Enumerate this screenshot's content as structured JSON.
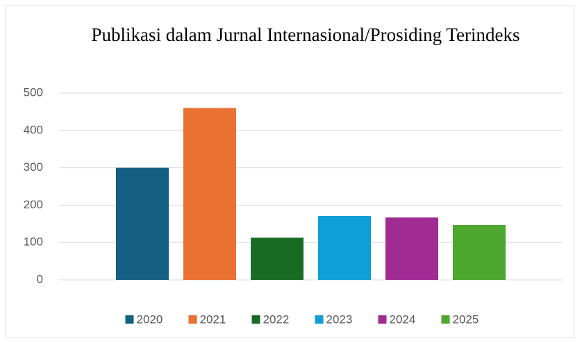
{
  "chart_data": {
    "type": "bar",
    "title": "Publikasi dalam Jurnal Internasional/Prosiding Terindeks",
    "categories": [
      null
    ],
    "series": [
      {
        "name": "2020",
        "color": "#156082",
        "values": [
          300
        ]
      },
      {
        "name": "2021",
        "color": "#e97132",
        "values": [
          460
        ]
      },
      {
        "name": "2022",
        "color": "#196b24",
        "values": [
          113
        ]
      },
      {
        "name": "2023",
        "color": "#0f9ed5",
        "values": [
          171
        ]
      },
      {
        "name": "2024",
        "color": "#a02b93",
        "values": [
          167
        ]
      },
      {
        "name": "2025",
        "color": "#4ea72e",
        "values": [
          147
        ]
      }
    ],
    "ylim": [
      0,
      500
    ],
    "yticks": [
      0,
      100,
      200,
      300,
      400,
      500
    ],
    "grid": true,
    "legend": "bottom"
  }
}
